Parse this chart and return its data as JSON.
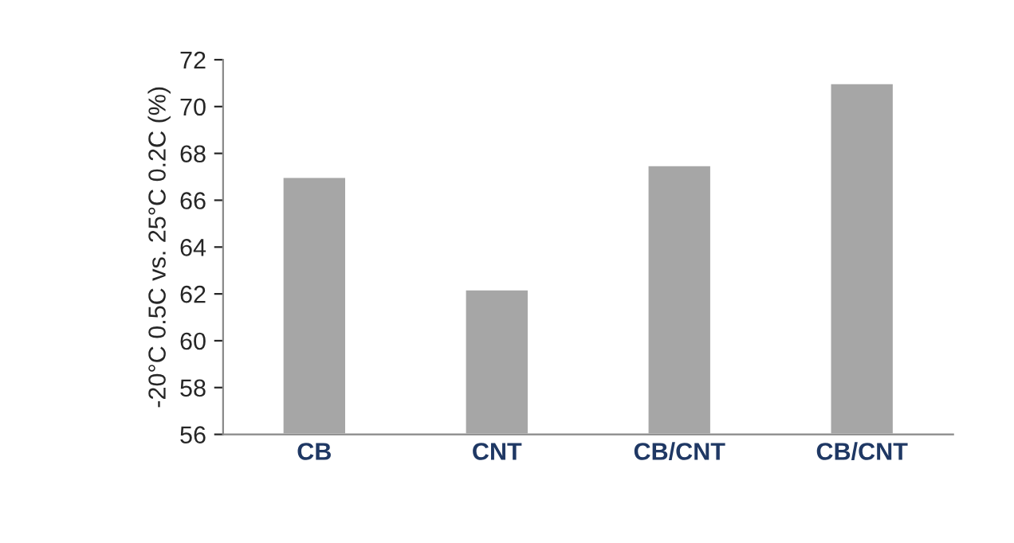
{
  "chart_data": {
    "type": "bar",
    "ylabel": "-20°C 0.5C vs. 25°C 0.2C (%)",
    "categories": [
      "CB",
      "CNT",
      "CB/CNT",
      "CB/CNT"
    ],
    "values": [
      67,
      62.2,
      67.5,
      71
    ],
    "color": "#a6a6a6",
    "ylim": [
      56,
      72
    ],
    "yticks": [
      56,
      58,
      60,
      62,
      64,
      66,
      68,
      70,
      72
    ],
    "grid": false,
    "legend": false
  }
}
